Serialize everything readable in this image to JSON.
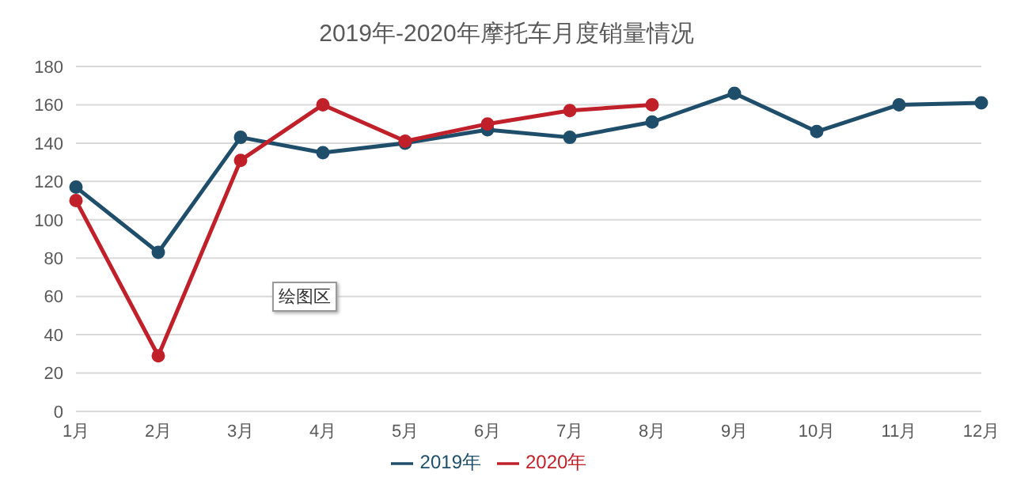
{
  "chart_data": {
    "type": "line",
    "title": "2019年-2020年摩托车月度销量情况",
    "categories": [
      "1月",
      "2月",
      "3月",
      "4月",
      "5月",
      "6月",
      "7月",
      "8月",
      "9月",
      "10月",
      "11月",
      "12月"
    ],
    "series": [
      {
        "name": "2020年",
        "color": "#c0202a",
        "values": [
          110,
          29,
          131,
          160,
          141,
          150,
          157,
          160,
          null,
          null,
          null,
          null
        ]
      },
      {
        "name": "2019年",
        "color": "#1f4e6b",
        "values": [
          117,
          83,
          143,
          135,
          140,
          147,
          143,
          151,
          166,
          146,
          160,
          161
        ]
      }
    ],
    "ylim": [
      0,
      180
    ],
    "yticks": [
      0,
      20,
      40,
      60,
      80,
      100,
      120,
      140,
      160,
      180
    ],
    "grid": "y",
    "legend": "bottom",
    "marker": "circle",
    "line_style": "solid",
    "annotations": [
      "绘图区"
    ]
  }
}
